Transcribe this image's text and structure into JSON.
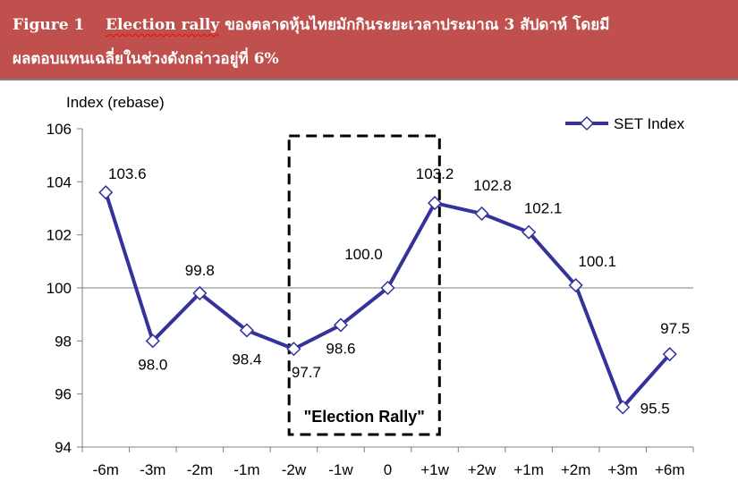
{
  "header": {
    "figure_label": "Figure 1",
    "title_en": "Election rally",
    "title_line1_rest": "ของตลาดหุ้นไทยมักกินระยะเวลาประมาณ 3 สัปดาห์ โดยมี",
    "title_line2": "ผลตอบแทนเฉลี่ยในช่วงดังกล่าวอยู่ที่ 6%"
  },
  "chart_data": {
    "type": "line",
    "ylabel": "Index (rebase)",
    "xlabel": "",
    "ylim": [
      94,
      106
    ],
    "yticks": [
      94,
      96,
      98,
      100,
      102,
      104,
      106
    ],
    "categories": [
      "-6m",
      "-3m",
      "-2m",
      "-1m",
      "-2w",
      "-1w",
      "0",
      "+1w",
      "+2w",
      "+1m",
      "+2m",
      "+3m",
      "+6m"
    ],
    "series": [
      {
        "name": "SET Index",
        "values": [
          103.6,
          98.0,
          99.8,
          98.4,
          97.7,
          98.6,
          100.0,
          103.2,
          102.8,
          102.1,
          100.1,
          95.5,
          97.5
        ],
        "labels": [
          "103.6",
          "98.0",
          "99.8",
          "98.4",
          "97.7",
          "98.6",
          "100.0",
          "103.2",
          "102.8",
          "102.1",
          "100.1",
          "95.5",
          "97.5"
        ]
      }
    ],
    "reference_line": 100,
    "annotation": {
      "text": "\"Election Rally\"",
      "from_index": 4,
      "to_index": 7
    },
    "legend_position": "top-right",
    "grid": false,
    "colors": {
      "line": "#33339a",
      "marker_fill": "#ffffff",
      "axis": "#808080"
    }
  }
}
